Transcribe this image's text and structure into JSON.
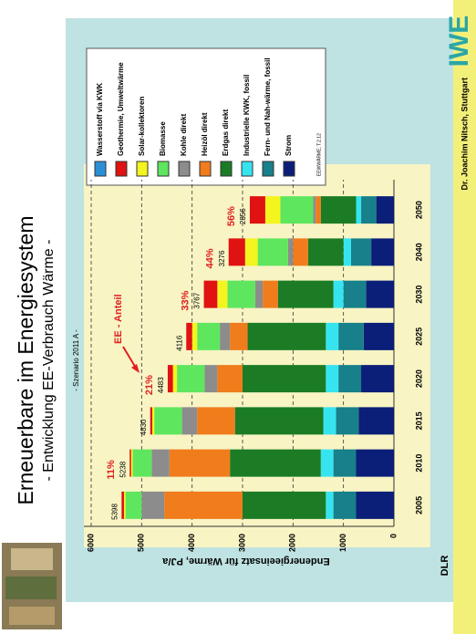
{
  "header": {
    "title": "Erneuerbare im Energiesystem",
    "subtitle": "- Entwicklung EE-Verbrauch Wärme -",
    "logo": "IWE"
  },
  "footer": {
    "author": "Dr. Joachim Nitsch, Stuttgart",
    "org": "DLR"
  },
  "chart_data": {
    "type": "bar",
    "stacked": true,
    "subtitle": "- Szenario 2011 A -",
    "ylabel": "Endenergieeinsatz für Wärme, PJ/a",
    "annotation": "EE - Anteil",
    "legend_note": "EEWWÄRME; T.2.12",
    "categories": [
      "2005",
      "2010",
      "2015",
      "2020",
      "2025",
      "2030",
      "2040",
      "2050"
    ],
    "series": [
      {
        "name": "Strom",
        "color": "#0b1e78",
        "values": [
          750,
          750,
          700,
          650,
          600,
          550,
          450,
          350
        ]
      },
      {
        "name": "Fern- und Nah-wärme, fossil",
        "color": "#17808a",
        "values": [
          450,
          450,
          450,
          450,
          500,
          450,
          400,
          300
        ]
      },
      {
        "name": "Industrielle KWK, fossil",
        "color": "#36e4f0",
        "values": [
          150,
          250,
          250,
          250,
          250,
          200,
          150,
          100
        ]
      },
      {
        "name": "Erdgas direkt",
        "color": "#1b7c25",
        "values": [
          1650,
          1800,
          1750,
          1650,
          1550,
          1100,
          700,
          700
        ]
      },
      {
        "name": "Heizöl direkt",
        "color": "#f07c1c",
        "values": [
          1550,
          1200,
          750,
          500,
          350,
          300,
          300,
          100
        ]
      },
      {
        "name": "Kohle direkt",
        "color": "#8c8c8c",
        "values": [
          450,
          350,
          300,
          250,
          200,
          150,
          100,
          50
        ]
      },
      {
        "name": "Biomasse",
        "color": "#5fe65f",
        "values": [
          320,
          380,
          550,
          550,
          450,
          550,
          600,
          650
        ]
      },
      {
        "name": "Solar-kollektoren",
        "color": "#f4f41e",
        "values": [
          30,
          30,
          40,
          80,
          100,
          200,
          250,
          300
        ]
      },
      {
        "name": "Geothermie, Umweltwärme",
        "color": "#e01212",
        "values": [
          48,
          28,
          40,
          103,
          116,
          267,
          326,
          306
        ]
      },
      {
        "name": "Wasserstoff via KWK",
        "color": "#2a8fd6",
        "values": [
          0,
          0,
          0,
          0,
          0,
          0,
          0,
          0
        ]
      }
    ],
    "totals": [
      5398,
      5238,
      4830,
      4483,
      4116,
      3767,
      3276,
      2856
    ],
    "ee_share_labels": [
      null,
      "11%",
      null,
      "21%",
      null,
      "33%",
      "44%",
      "56%"
    ],
    "ylim": [
      0,
      6000
    ],
    "yticks": [
      0,
      1000,
      2000,
      3000,
      4000,
      5000,
      6000
    ],
    "grid": true
  }
}
